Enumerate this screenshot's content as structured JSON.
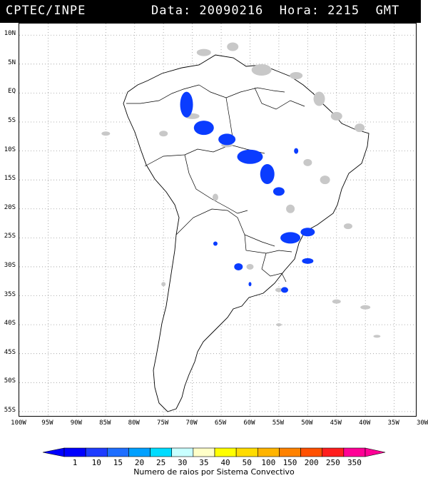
{
  "header": {
    "left": "CPTEC/INPE",
    "right": "Data: 20090216  Hora: 2215  GMT"
  },
  "map": {
    "lat_ticks": [
      "10N",
      "5N",
      "EQ",
      "5S",
      "10S",
      "15S",
      "20S",
      "25S",
      "30S",
      "35S",
      "40S",
      "45S",
      "50S",
      "55S"
    ],
    "lon_ticks": [
      "100W",
      "95W",
      "90W",
      "85W",
      "80W",
      "75W",
      "70W",
      "65W",
      "60W",
      "55W",
      "50W",
      "45W",
      "40W",
      "35W",
      "30W"
    ],
    "lat_range": [
      -56,
      12
    ],
    "lon_range": [
      -100,
      -31
    ],
    "land_color": "#ffffff",
    "cloud_color": "#c8c8c8",
    "lightning_color": "#0a3cff",
    "grid": "dotted"
  },
  "colorbar": {
    "title": "Numero de raios por Sistema Convectivo",
    "ticks": [
      "1",
      "10",
      "15",
      "20",
      "25",
      "30",
      "35",
      "40",
      "50",
      "100",
      "150",
      "200",
      "250",
      "350"
    ],
    "colors": [
      "#0000ff",
      "#1e3cff",
      "#1e6eff",
      "#00a0ff",
      "#00dcff",
      "#c8ffff",
      "#ffffc8",
      "#ffff00",
      "#ffdc00",
      "#ffb400",
      "#ff8200",
      "#ff5000",
      "#ff1e1e",
      "#ff0096"
    ]
  }
}
